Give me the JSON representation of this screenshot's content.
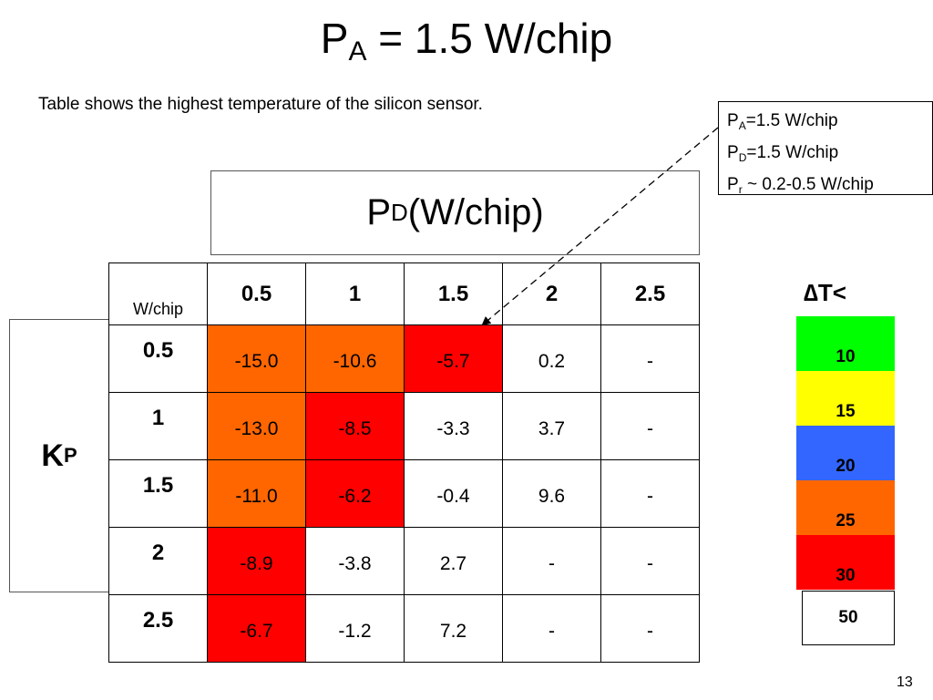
{
  "title": {
    "main": "P",
    "sub": "A",
    "rest": " = 1.5 W/chip"
  },
  "subtitle": "Table shows the highest temperature of the silicon sensor.",
  "note": {
    "line1": {
      "main": "P",
      "sub": "A",
      "rest": "=1.5 W/chip"
    },
    "line2": {
      "main": "P",
      "sub": "D",
      "rest": "=1.5 W/chip"
    },
    "line3": {
      "main": "P",
      "sub": "r",
      "rest": " ~ 0.2-0.5 W/chip"
    }
  },
  "pd_header": {
    "main": "P",
    "sub": "D",
    "rest": " (W/chip)"
  },
  "kp_header": {
    "main": "K",
    "sub": "P"
  },
  "table": {
    "corner": "W/chip",
    "columns": [
      "0.5",
      "1",
      "1.5",
      "2",
      "2.5"
    ],
    "rows": [
      {
        "label": "0.5",
        "cells": [
          {
            "v": "-15.0",
            "c": "#ff6600"
          },
          {
            "v": "-10.6",
            "c": "#ff6600"
          },
          {
            "v": "-5.7",
            "c": "#ff0000"
          },
          {
            "v": "0.2",
            "c": "#ffffff"
          },
          {
            "v": "-",
            "c": "#ffffff"
          }
        ]
      },
      {
        "label": "1",
        "cells": [
          {
            "v": "-13.0",
            "c": "#ff6600"
          },
          {
            "v": "-8.5",
            "c": "#ff0000"
          },
          {
            "v": "-3.3",
            "c": "#ffffff"
          },
          {
            "v": "3.7",
            "c": "#ffffff"
          },
          {
            "v": "-",
            "c": "#ffffff"
          }
        ]
      },
      {
        "label": "1.5",
        "cells": [
          {
            "v": "-11.0",
            "c": "#ff6600"
          },
          {
            "v": "-6.2",
            "c": "#ff0000"
          },
          {
            "v": "-0.4",
            "c": "#ffffff"
          },
          {
            "v": "9.6",
            "c": "#ffffff"
          },
          {
            "v": "-",
            "c": "#ffffff"
          }
        ]
      },
      {
        "label": "2",
        "cells": [
          {
            "v": "-8.9",
            "c": "#ff0000"
          },
          {
            "v": "-3.8",
            "c": "#ffffff"
          },
          {
            "v": "2.7",
            "c": "#ffffff"
          },
          {
            "v": "-",
            "c": "#ffffff"
          },
          {
            "v": "-",
            "c": "#ffffff"
          }
        ]
      },
      {
        "label": "2.5",
        "cells": [
          {
            "v": "-6.7",
            "c": "#ff0000"
          },
          {
            "v": "-1.2",
            "c": "#ffffff"
          },
          {
            "v": "7.2",
            "c": "#ffffff"
          },
          {
            "v": "-",
            "c": "#ffffff"
          },
          {
            "v": "-",
            "c": "#ffffff"
          }
        ]
      }
    ]
  },
  "legend": {
    "title": "∆T<",
    "items": [
      {
        "label": "10",
        "color": "#00ff00"
      },
      {
        "label": "15",
        "color": "#ffff00"
      },
      {
        "label": "20",
        "color": "#3366ff"
      },
      {
        "label": "25",
        "color": "#ff6600"
      },
      {
        "label": "30",
        "color": "#ff0000"
      }
    ],
    "last": "50"
  },
  "page_number": "13"
}
